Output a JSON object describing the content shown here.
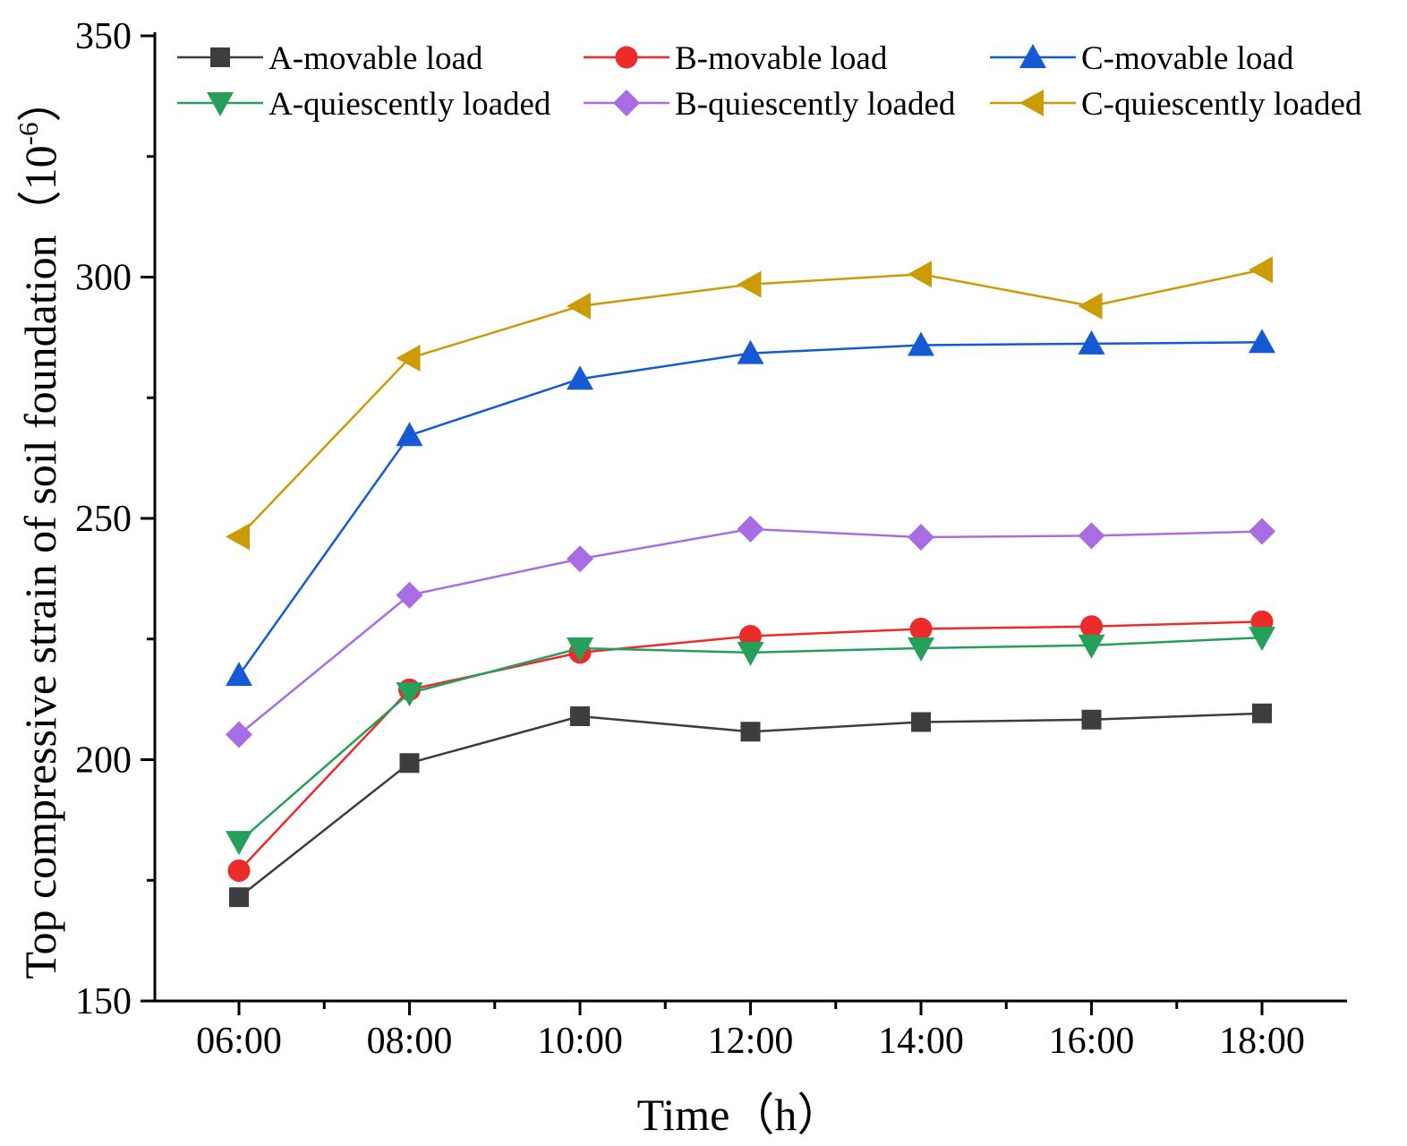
{
  "chart_data": {
    "type": "line",
    "title": "",
    "xlabel": "Time（h）",
    "ylabel_main": "Top compressive strain of soil foundation（10",
    "ylabel_sup": "-6",
    "ylabel_end": "）",
    "x_ticks": [
      "06:00",
      "08:00",
      "10:00",
      "12:00",
      "14:00",
      "16:00",
      "18:00"
    ],
    "y_ticks": [
      "150",
      "200",
      "250",
      "300",
      "350"
    ],
    "ylim": [
      150,
      350
    ],
    "legend_position": "top",
    "series": [
      {
        "name": "A-movable load",
        "color": "#3d3d3d",
        "marker": "square",
        "values": [
          171.5,
          199.3,
          209.0,
          205.8,
          207.8,
          208.3,
          209.6
        ]
      },
      {
        "name": "B-movable load",
        "color": "#ec2b2b",
        "marker": "circle",
        "values": [
          177.0,
          214.5,
          222.2,
          225.6,
          227.1,
          227.6,
          228.6
        ]
      },
      {
        "name": "C-movable load",
        "color": "#1659d4",
        "marker": "triangle-up",
        "values": [
          217.5,
          267.2,
          278.9,
          284.2,
          285.9,
          286.2,
          286.5
        ]
      },
      {
        "name": "A-quiescently loaded",
        "color": "#25a05b",
        "marker": "triangle-down",
        "values": [
          183.0,
          213.8,
          223.1,
          222.2,
          223.1,
          223.7,
          225.3
        ]
      },
      {
        "name": "B-quiescently loaded",
        "color": "#a96de3",
        "marker": "diamond",
        "values": [
          205.2,
          234.1,
          241.6,
          247.8,
          246.1,
          246.4,
          247.3
        ]
      },
      {
        "name": "C-quiescently loaded",
        "color": "#cc9b06",
        "marker": "triangle-left",
        "values": [
          246.2,
          283.2,
          294.0,
          298.5,
          300.6,
          294.0,
          301.5
        ]
      }
    ]
  }
}
